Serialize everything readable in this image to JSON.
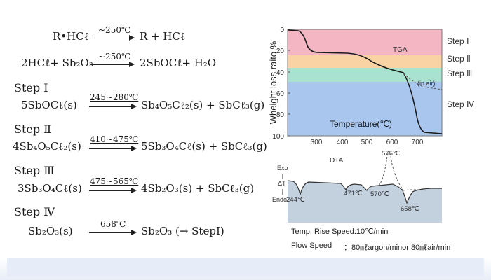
{
  "equations": {
    "e1": {
      "left": "R•HCℓ",
      "cond": "~250℃",
      "right": "R + HCℓ"
    },
    "e2": {
      "left": "2HCℓ+ Sb₂O₃",
      "cond": "~250℃",
      "right": "2SbOCℓ+ H₂O"
    },
    "step1": {
      "title": "Step Ⅰ",
      "left": "5SbOCℓ(s)",
      "cond": "245~280℃",
      "right": "Sb₄O₅Cℓ₂(s) + SbCℓ₃(g)"
    },
    "step2": {
      "title": "Step Ⅱ",
      "left": "4Sb₄O₅Cℓ₂(s)",
      "cond": "410~475℃",
      "right": "5Sb₃O₄Cℓ(s) + SbCℓ₃(g)"
    },
    "step3": {
      "title": "Step Ⅲ",
      "left": "3Sb₃O₄Cℓ(s)",
      "cond": "475~565℃",
      "right": "4Sb₂O₃(s) + SbCℓ₃(g)"
    },
    "step4": {
      "title": "Step Ⅳ",
      "left": "Sb₂O₃(s)",
      "cond": "658℃",
      "right": "Sb₂O₃ (→ StepⅠ)"
    }
  },
  "chart": {
    "ylabel": "Wheight loss raito %",
    "yticks": [
      "0",
      "20",
      "40",
      "60",
      "80",
      "100"
    ],
    "xticks": [
      "300",
      "400",
      "500",
      "600",
      "700"
    ],
    "tga_label": "TGA",
    "in_air_label": "(in air)",
    "temperature_label": "Temperature(℃)",
    "dta_label": "DTA",
    "exo": "Exo",
    "delta_t": "ΔT",
    "endo": "Endo",
    "peaks": [
      "244℃",
      "471℃",
      "570℃",
      "575℃",
      "658℃"
    ],
    "step_labels": [
      "Step Ⅰ",
      "Step Ⅱ",
      "Step Ⅲ",
      "Step Ⅳ"
    ],
    "band_colors": [
      "#f4b6c2",
      "#f9d3a4",
      "#a9e2d0",
      "#a9c6ee"
    ],
    "dta_bg": "#c3d1df"
  },
  "conditions": {
    "rise_speed": "Temp. Rise Speed:10℃/min",
    "flow_label": "Flow Speed",
    "flow_value": "：80㎖argon/minor 80㎖air/min"
  }
}
